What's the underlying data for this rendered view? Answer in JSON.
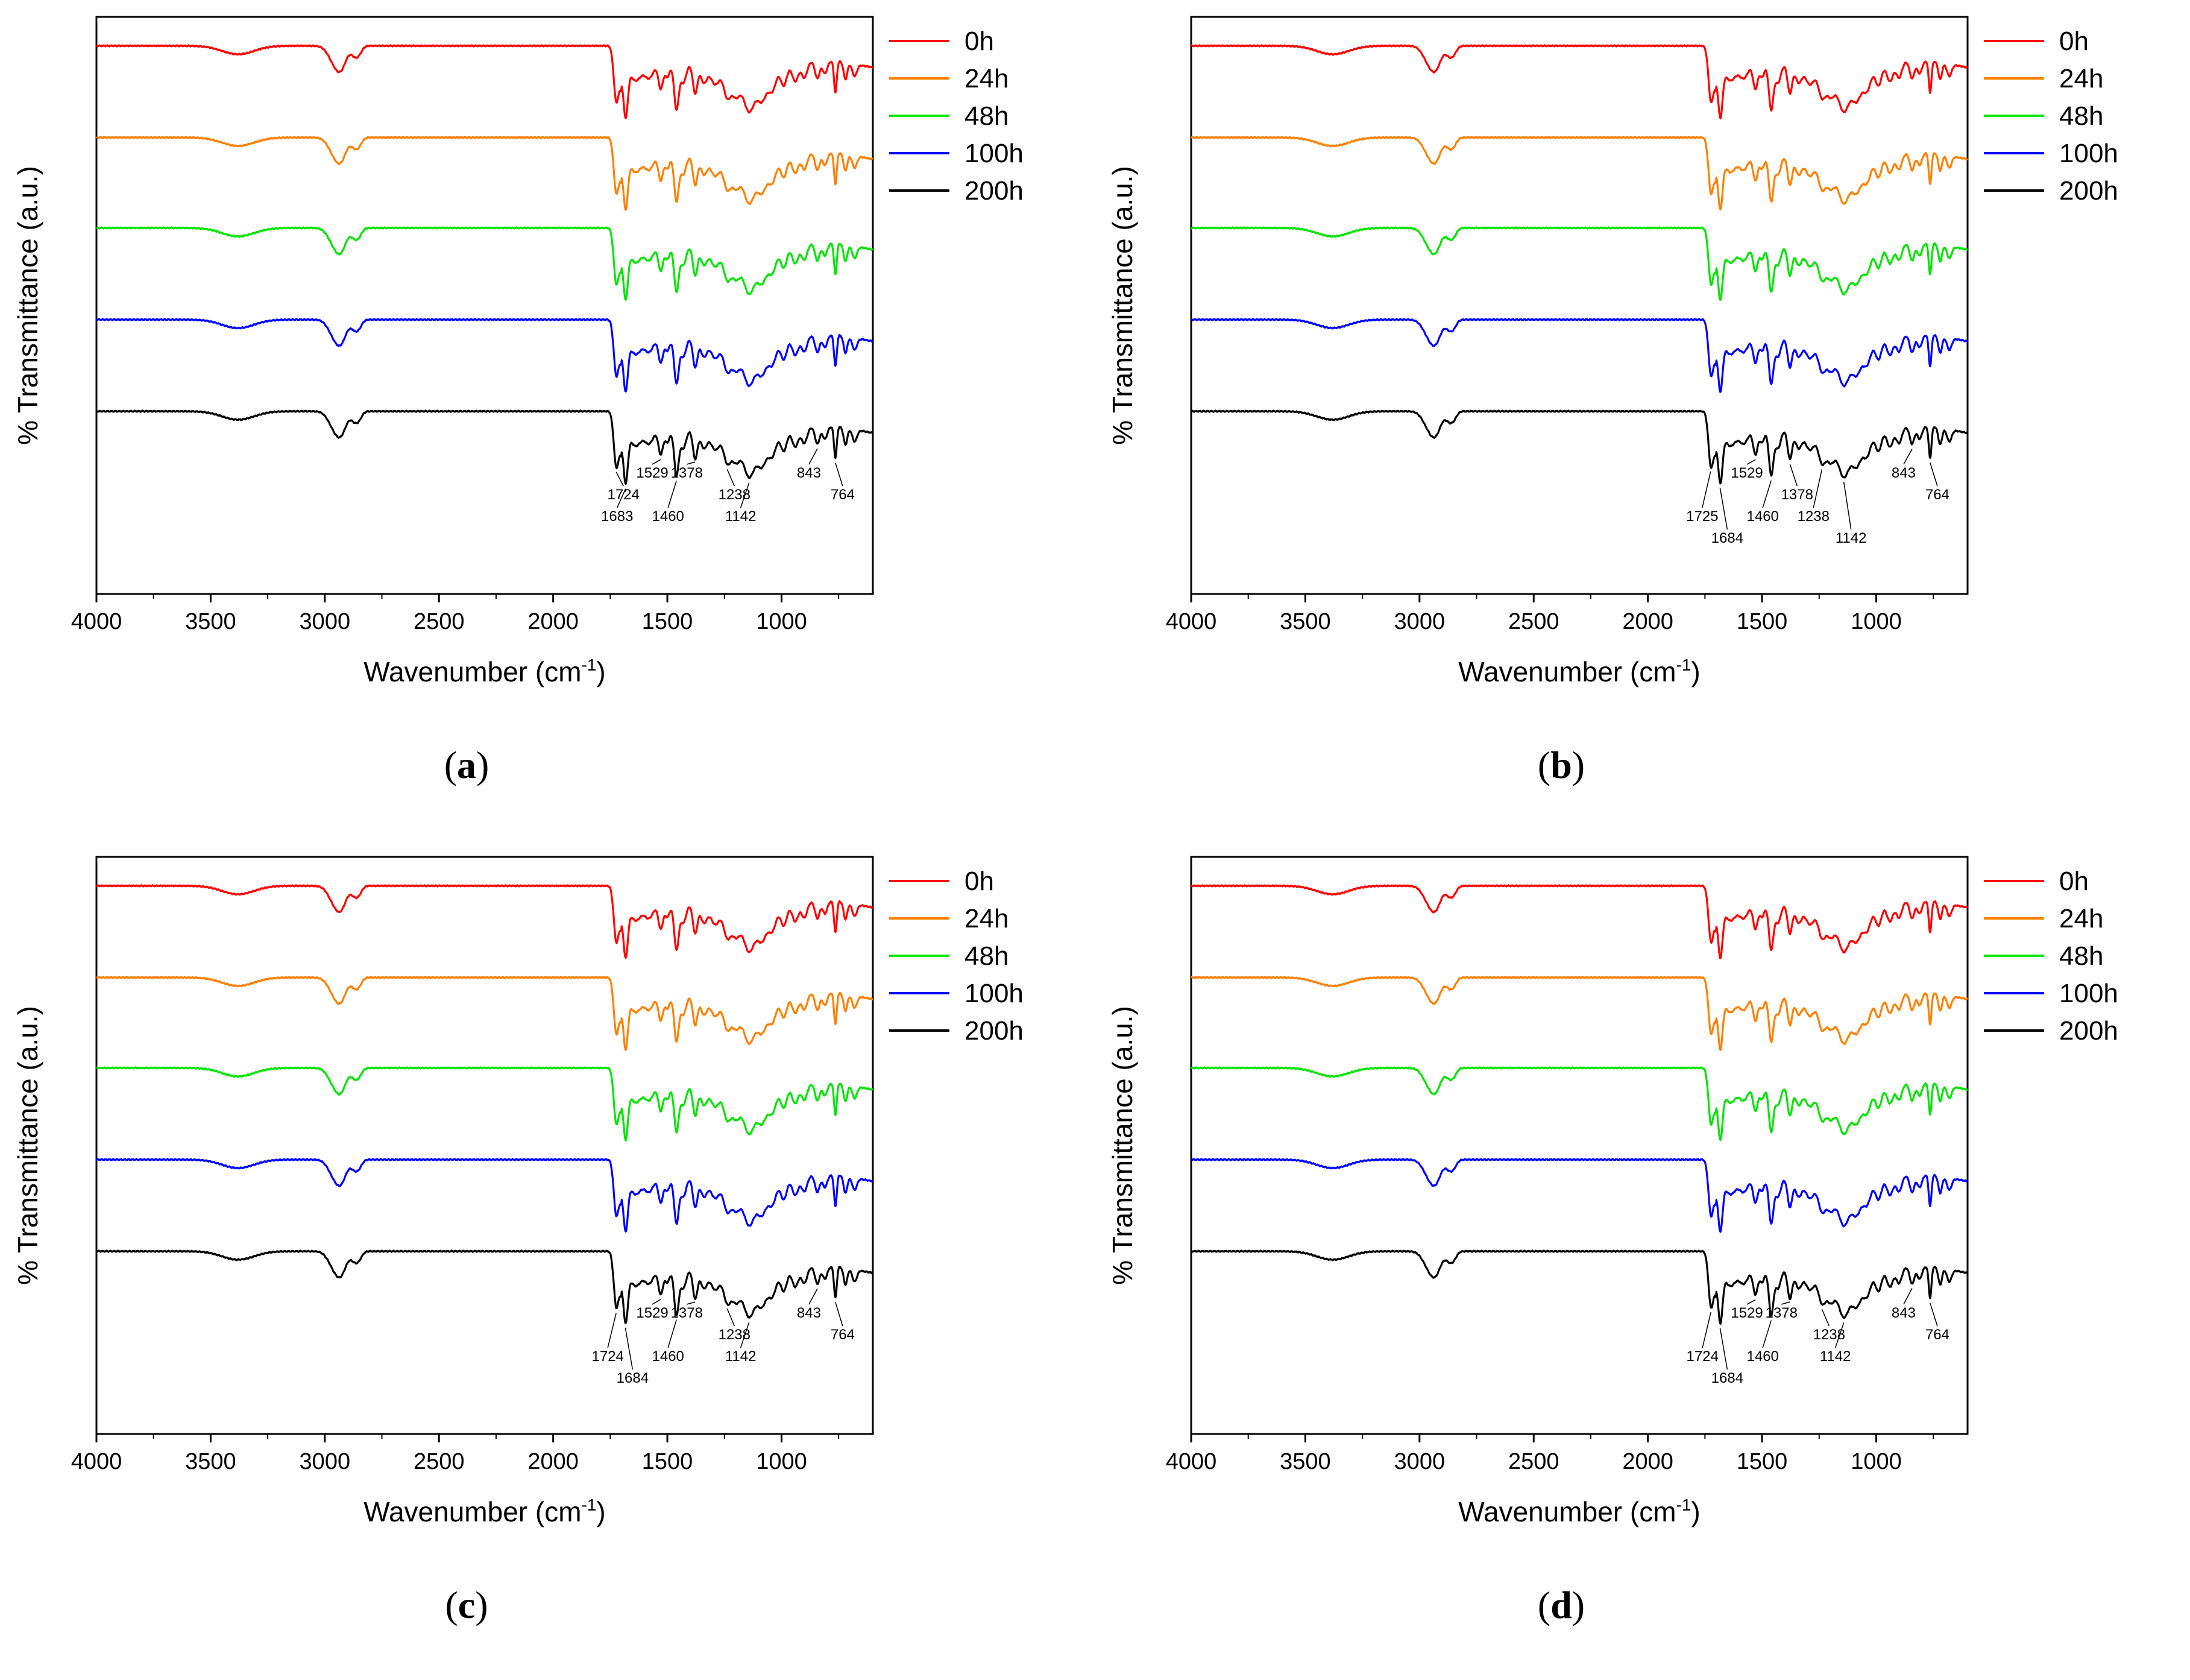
{
  "chart_data": [
    {
      "panel": "a",
      "type": "line",
      "xlabel": "Wavenumber (cm",
      "xlabel_sup": "-1",
      "xlabel_close": ")",
      "ylabel": "% Transmittance (a.u.)",
      "xlim": [
        4000,
        600
      ],
      "xticks": [
        4000,
        3500,
        3000,
        2500,
        2000,
        1500,
        1000
      ],
      "legend_position": "top-right, outside plot",
      "series": [
        {
          "name": "0h",
          "color": "#ff0000"
        },
        {
          "name": "24h",
          "color": "#ff8000"
        },
        {
          "name": "48h",
          "color": "#00e600"
        },
        {
          "name": "100h",
          "color": "#0000ff"
        },
        {
          "name": "200h",
          "color": "#000000"
        }
      ],
      "annotations": [
        {
          "text": "1724",
          "x": 1724,
          "row": 1
        },
        {
          "text": "1683",
          "x": 1683,
          "row": 2
        },
        {
          "text": "1529",
          "x": 1529,
          "row": 0
        },
        {
          "text": "1460",
          "x": 1460,
          "row": 2
        },
        {
          "text": "1378",
          "x": 1378,
          "row": 0
        },
        {
          "text": "1238",
          "x": 1238,
          "row": 1
        },
        {
          "text": "1142",
          "x": 1142,
          "row": 2
        },
        {
          "text": "843",
          "x": 843,
          "row": 0
        },
        {
          "text": "764",
          "x": 764,
          "row": 1
        }
      ]
    },
    {
      "panel": "b",
      "type": "line",
      "xlabel": "Wavenumber (cm",
      "xlabel_sup": "-1",
      "xlabel_close": ")",
      "ylabel": "% Transmittance (a.u.)",
      "xlim": [
        4000,
        600
      ],
      "xticks": [
        4000,
        3500,
        3000,
        2500,
        2000,
        1500,
        1000
      ],
      "legend_position": "top-right, outside plot",
      "series": [
        {
          "name": "0h",
          "color": "#ff0000"
        },
        {
          "name": "24h",
          "color": "#ff8000"
        },
        {
          "name": "48h",
          "color": "#00e600"
        },
        {
          "name": "100h",
          "color": "#0000ff"
        },
        {
          "name": "200h",
          "color": "#000000"
        }
      ],
      "annotations": [
        {
          "text": "1725",
          "x": 1725,
          "row": 2
        },
        {
          "text": "1684",
          "x": 1684,
          "row": 3
        },
        {
          "text": "1529",
          "x": 1529,
          "row": 0
        },
        {
          "text": "1460",
          "x": 1460,
          "row": 2
        },
        {
          "text": "1378",
          "x": 1378,
          "row": 1
        },
        {
          "text": "1238",
          "x": 1238,
          "row": 2
        },
        {
          "text": "1142",
          "x": 1142,
          "row": 3
        },
        {
          "text": "843",
          "x": 843,
          "row": 0
        },
        {
          "text": "764",
          "x": 764,
          "row": 1
        }
      ]
    },
    {
      "panel": "c",
      "type": "line",
      "xlabel": "Wavenumber (cm",
      "xlabel_sup": "-1",
      "xlabel_close": ")",
      "ylabel": "% Transmittance (a.u.)",
      "xlim": [
        4000,
        600
      ],
      "xticks": [
        4000,
        3500,
        3000,
        2500,
        2000,
        1500,
        1000
      ],
      "legend_position": "top-right, outside plot",
      "series": [
        {
          "name": "0h",
          "color": "#ff0000"
        },
        {
          "name": "24h",
          "color": "#ff8000"
        },
        {
          "name": "48h",
          "color": "#00e600"
        },
        {
          "name": "100h",
          "color": "#0000ff"
        },
        {
          "name": "200h",
          "color": "#000000"
        }
      ],
      "annotations": [
        {
          "text": "1724",
          "x": 1724,
          "row": 2
        },
        {
          "text": "1684",
          "x": 1684,
          "row": 3
        },
        {
          "text": "1529",
          "x": 1529,
          "row": 0
        },
        {
          "text": "1460",
          "x": 1460,
          "row": 2
        },
        {
          "text": "1378",
          "x": 1378,
          "row": 0
        },
        {
          "text": "1238",
          "x": 1238,
          "row": 1
        },
        {
          "text": "1142",
          "x": 1142,
          "row": 2
        },
        {
          "text": "843",
          "x": 843,
          "row": 0
        },
        {
          "text": "764",
          "x": 764,
          "row": 1
        }
      ]
    },
    {
      "panel": "d",
      "type": "line",
      "xlabel": "Wavenumber (cm",
      "xlabel_sup": "-1",
      "xlabel_close": ")",
      "ylabel": "% Transmittance (a.u.)",
      "xlim": [
        4000,
        600
      ],
      "xticks": [
        4000,
        3500,
        3000,
        2500,
        2000,
        1500,
        1000
      ],
      "legend_position": "top-right, outside plot",
      "series": [
        {
          "name": "0h",
          "color": "#ff0000"
        },
        {
          "name": "24h",
          "color": "#ff8000"
        },
        {
          "name": "48h",
          "color": "#00e600"
        },
        {
          "name": "100h",
          "color": "#0000ff"
        },
        {
          "name": "200h",
          "color": "#000000"
        }
      ],
      "annotations": [
        {
          "text": "1724",
          "x": 1724,
          "row": 2
        },
        {
          "text": "1684",
          "x": 1684,
          "row": 3
        },
        {
          "text": "1529",
          "x": 1529,
          "row": 0
        },
        {
          "text": "1460",
          "x": 1460,
          "row": 2
        },
        {
          "text": "1378",
          "x": 1378,
          "row": 0
        },
        {
          "text": "1238",
          "x": 1238,
          "row": 1
        },
        {
          "text": "1142",
          "x": 1142,
          "row": 2
        },
        {
          "text": "843",
          "x": 843,
          "row": 0
        },
        {
          "text": "764",
          "x": 764,
          "row": 1
        }
      ]
    }
  ]
}
